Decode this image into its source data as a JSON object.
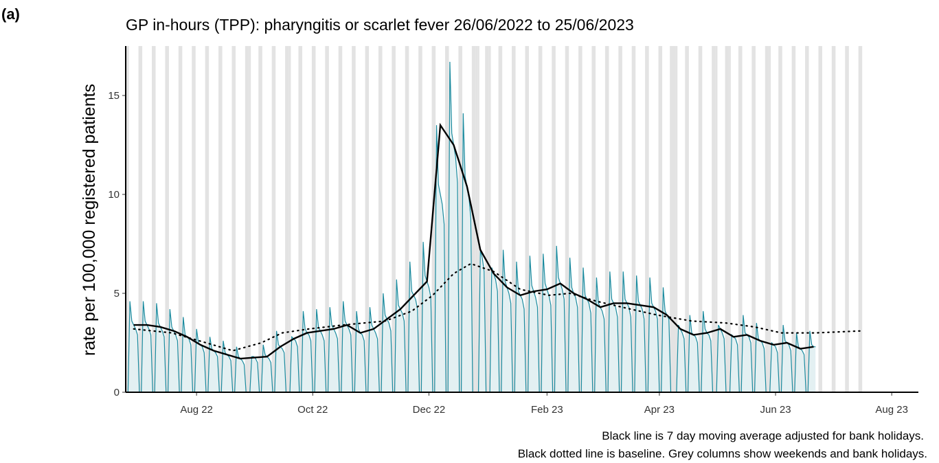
{
  "panel_label": "(a)",
  "chart_data": {
    "type": "line",
    "title": "GP in-hours (TPP): pharyngitis or scarlet fever 26/06/2022 to 25/06/2023",
    "y_label": "rate per 100,000 registered patients",
    "notes": [
      "Black line is 7 day moving average adjusted for bank holidays.",
      "Black dotted line is baseline. Grey columns show weekends and bank holidays."
    ],
    "xlim": [
      -1.2,
      415
    ],
    "ylim": [
      0,
      17.5
    ],
    "xticks": [
      {
        "value": 36,
        "label": "Aug 22"
      },
      {
        "value": 97,
        "label": "Oct 22"
      },
      {
        "value": 158,
        "label": "Dec 22"
      },
      {
        "value": 220,
        "label": "Feb 23"
      },
      {
        "value": 279,
        "label": "Apr 23"
      },
      {
        "value": 340,
        "label": "Jun 23"
      },
      {
        "value": 401,
        "label": "Aug 23"
      }
    ],
    "yticks": [
      0,
      5,
      10,
      15
    ],
    "shade_color": "#e3e3e3",
    "weekend_saturdays": [
      -1,
      6,
      13,
      20,
      27,
      34,
      41,
      48,
      55,
      62,
      69,
      76,
      83,
      90,
      97,
      104,
      111,
      118,
      125,
      132,
      139,
      146,
      153,
      160,
      167,
      174,
      181,
      188,
      195,
      202,
      209,
      216,
      223,
      230,
      237,
      244,
      251,
      258,
      265,
      272,
      279,
      286,
      293,
      300,
      307,
      314,
      321,
      328,
      335,
      342,
      349,
      356,
      363,
      370,
      377,
      384
    ],
    "bank_holidays": [
      64,
      85,
      183,
      184,
      190,
      285,
      288,
      309,
      316,
      337
    ],
    "series": [
      {
        "style": "daily",
        "color": "#1a8a9e",
        "fill": "#dcecef",
        "x": [
          0,
          1,
          2,
          3,
          4,
          5,
          6,
          7,
          8,
          9,
          10,
          11,
          12,
          13,
          14,
          15,
          16,
          17,
          18,
          19,
          20,
          21,
          22,
          23,
          24,
          25,
          26,
          27,
          28,
          29,
          30,
          31,
          32,
          33,
          34,
          35,
          36,
          37,
          38,
          39,
          40,
          41,
          42,
          43,
          44,
          45,
          46,
          47,
          48,
          49,
          50,
          51,
          52,
          53,
          54,
          55,
          56,
          57,
          58,
          59,
          60,
          61,
          62,
          63,
          64,
          65,
          66,
          67,
          68,
          69,
          70,
          71,
          72,
          73,
          74,
          75,
          76,
          77,
          78,
          79,
          80,
          81,
          82,
          83,
          84,
          85,
          86,
          87,
          88,
          89,
          90,
          91,
          92,
          93,
          94,
          95,
          96,
          97,
          98,
          99,
          100,
          101,
          102,
          103,
          104,
          105,
          106,
          107,
          108,
          109,
          110,
          111,
          112,
          113,
          114,
          115,
          116,
          117,
          118,
          119,
          120,
          121,
          122,
          123,
          124,
          125,
          126,
          127,
          128,
          129,
          130,
          131,
          132,
          133,
          134,
          135,
          136,
          137,
          138,
          139,
          140,
          141,
          142,
          143,
          144,
          145,
          146,
          147,
          148,
          149,
          150,
          151,
          152,
          153,
          154,
          155,
          156,
          157,
          158,
          159,
          160,
          161,
          162,
          163,
          164,
          165,
          166,
          167,
          168,
          169,
          170,
          171,
          172,
          173,
          174,
          175,
          176,
          177,
          178,
          179,
          180,
          181,
          182,
          183,
          184,
          185,
          186,
          187,
          188,
          189,
          190,
          191,
          192,
          193,
          194,
          195,
          196,
          197,
          198,
          199,
          200,
          201,
          202,
          203,
          204,
          205,
          206,
          207,
          208,
          209,
          210,
          211,
          212,
          213,
          214,
          215,
          216,
          217,
          218,
          219,
          220,
          221,
          222,
          223,
          224,
          225,
          226,
          227,
          228,
          229,
          230,
          231,
          232,
          233,
          234,
          235,
          236,
          237,
          238,
          239,
          240,
          241,
          242,
          243,
          244,
          245,
          246,
          247,
          248,
          249,
          250,
          251,
          252,
          253,
          254,
          255,
          256,
          257,
          258,
          259,
          260,
          261,
          262,
          263,
          264,
          265,
          266,
          267,
          268,
          269,
          270,
          271,
          272,
          273,
          274,
          275,
          276,
          277,
          278,
          279,
          280,
          281,
          282,
          283,
          284,
          285,
          286,
          287,
          288,
          289,
          290,
          291,
          292,
          293,
          294,
          295,
          296,
          297,
          298,
          299,
          300,
          301,
          302,
          303,
          304,
          305,
          306,
          307,
          308,
          309,
          310,
          311,
          312,
          313,
          314,
          315,
          316,
          317,
          318,
          319,
          320,
          321,
          322,
          323,
          324,
          325,
          326,
          327,
          328,
          329,
          330,
          331,
          332,
          333,
          334,
          335,
          336,
          337,
          338,
          339,
          340,
          341,
          342,
          343,
          344,
          345,
          346,
          347,
          348,
          349,
          350,
          351,
          352,
          353,
          354,
          355,
          356,
          357,
          358,
          359,
          360,
          361
        ],
        "values": [
          0,
          4.6,
          3.6,
          3.4,
          3.2,
          2.9,
          0,
          0,
          4.6,
          3.6,
          3.4,
          3.2,
          2.9,
          0,
          0,
          4.5,
          3.5,
          3.3,
          3.1,
          2.8,
          0,
          0,
          4.2,
          3.3,
          3.1,
          2.9,
          2.6,
          0,
          0,
          3.8,
          2.9,
          2.8,
          2.7,
          2.4,
          0,
          0,
          3.2,
          2.5,
          2.4,
          2.3,
          2.0,
          0,
          0,
          2.8,
          2.2,
          2.1,
          2.0,
          1.8,
          0,
          0,
          2.6,
          2.0,
          1.9,
          1.8,
          1.6,
          0,
          0,
          2.3,
          1.8,
          1.7,
          1.6,
          1.4,
          0,
          0,
          0,
          1.8,
          1.8,
          1.7,
          1.5,
          0,
          0,
          2.4,
          1.9,
          1.8,
          1.7,
          1.5,
          0,
          0,
          3.1,
          2.4,
          2.3,
          2.2,
          2.0,
          0,
          0,
          0,
          2.8,
          2.7,
          2.6,
          2.3,
          0,
          0,
          4.1,
          3.2,
          3.0,
          2.9,
          2.6,
          0,
          0,
          4.2,
          3.3,
          3.1,
          2.9,
          2.6,
          0,
          0,
          4.3,
          3.4,
          3.2,
          3.0,
          2.7,
          0,
          0,
          4.6,
          3.6,
          3.4,
          3.2,
          2.9,
          0,
          0,
          4.1,
          3.2,
          3.0,
          2.9,
          2.6,
          0,
          0,
          4.3,
          3.4,
          3.2,
          3.0,
          2.7,
          0,
          0,
          5.0,
          3.9,
          3.7,
          3.5,
          3.1,
          0,
          0,
          5.7,
          4.4,
          4.2,
          4.0,
          3.6,
          0,
          0,
          6.6,
          5.1,
          4.9,
          4.7,
          4.2,
          0,
          0,
          7.6,
          5.9,
          5.6,
          5.3,
          4.8,
          0,
          0,
          13.5,
          10.5,
          10.0,
          9.5,
          8.5,
          0,
          0,
          16.7,
          13.1,
          12.5,
          11.9,
          10.6,
          0,
          0,
          14.1,
          10.9,
          10.4,
          9.9,
          8.8,
          0,
          0,
          0,
          0,
          7.2,
          6.8,
          6.1,
          0,
          0,
          0,
          6.3,
          6.0,
          5.7,
          5.1,
          0,
          0,
          7.2,
          5.6,
          5.3,
          5.0,
          4.5,
          0,
          0,
          6.6,
          5.1,
          4.9,
          4.7,
          4.2,
          0,
          0,
          6.9,
          5.4,
          5.1,
          4.8,
          4.3,
          0,
          0,
          7.0,
          5.5,
          5.2,
          4.9,
          4.4,
          0,
          0,
          7.4,
          5.8,
          5.5,
          5.2,
          4.7,
          0,
          0,
          6.8,
          5.3,
          5.0,
          4.8,
          4.3,
          0,
          0,
          6.3,
          4.9,
          4.7,
          4.5,
          4.0,
          0,
          0,
          5.8,
          4.5,
          4.3,
          4.1,
          3.7,
          0,
          0,
          6.1,
          4.7,
          4.5,
          4.3,
          3.8,
          0,
          0,
          6.1,
          4.7,
          4.5,
          4.3,
          3.8,
          0,
          0,
          5.9,
          4.6,
          4.4,
          4.2,
          3.7,
          0,
          0,
          5.8,
          4.5,
          4.3,
          4.1,
          3.7,
          0,
          0,
          5.3,
          4.1,
          3.9,
          3.7,
          0,
          0,
          0,
          0,
          3.4,
          3.2,
          3.0,
          2.7,
          0,
          0,
          3.9,
          3.0,
          2.9,
          2.8,
          2.5,
          0,
          0,
          4.1,
          3.2,
          3.0,
          2.9,
          2.6,
          0,
          0,
          0,
          3.4,
          3.2,
          3.0,
          2.7,
          0,
          0,
          0,
          2.9,
          2.8,
          2.7,
          2.4,
          0,
          0,
          3.9,
          3.0,
          2.9,
          2.8,
          2.5,
          0,
          0,
          3.5,
          2.7,
          2.6,
          2.5,
          2.2,
          0,
          0,
          0,
          2.5,
          2.4,
          2.3,
          2.0,
          0,
          0,
          3.4,
          2.6,
          2.5,
          2.4,
          2.1,
          0,
          0,
          3.0,
          2.3,
          2.2,
          2.1,
          1.9,
          0,
          0,
          3.1,
          2.4,
          2.3,
          2.3
        ]
      },
      {
        "style": "moving-average",
        "color": "#000000",
        "x": [
          3,
          10,
          17,
          24,
          31,
          38,
          45,
          52,
          59,
          66,
          73,
          80,
          87,
          94,
          101,
          108,
          115,
          122,
          129,
          136,
          143,
          150,
          157,
          164,
          171,
          178,
          185,
          192,
          199,
          206,
          213,
          220,
          227,
          234,
          241,
          248,
          255,
          262,
          269,
          276,
          283,
          290,
          297,
          304,
          311,
          318,
          325,
          332,
          339,
          346,
          353,
          360
        ],
        "values": [
          3.4,
          3.4,
          3.3,
          3.1,
          2.8,
          2.4,
          2.1,
          1.9,
          1.7,
          1.75,
          1.8,
          2.3,
          2.7,
          3.0,
          3.1,
          3.2,
          3.4,
          3.0,
          3.2,
          3.7,
          4.2,
          4.9,
          5.6,
          13.5,
          12.5,
          10.4,
          7.2,
          6.0,
          5.3,
          4.9,
          5.1,
          5.2,
          5.5,
          5.0,
          4.7,
          4.3,
          4.5,
          4.5,
          4.4,
          4.3,
          3.9,
          3.2,
          2.9,
          3.0,
          3.2,
          2.8,
          2.9,
          2.6,
          2.4,
          2.5,
          2.2,
          2.3
        ]
      },
      {
        "style": "baseline",
        "color": "#000000",
        "x": [
          3,
          23,
          41,
          55,
          70,
          81,
          95,
          113,
          135,
          149,
          160,
          171,
          180,
          192,
          206,
          221,
          232,
          246,
          264,
          278,
          296,
          314,
          329,
          343,
          361,
          385
        ],
        "values": [
          3.2,
          3.0,
          2.5,
          2.1,
          2.5,
          3.0,
          3.2,
          3.4,
          3.6,
          4.1,
          4.9,
          6.0,
          6.5,
          6.1,
          5.2,
          4.9,
          5.0,
          4.6,
          4.2,
          3.9,
          3.6,
          3.5,
          3.3,
          3.0,
          3.0,
          3.1
        ]
      }
    ]
  }
}
